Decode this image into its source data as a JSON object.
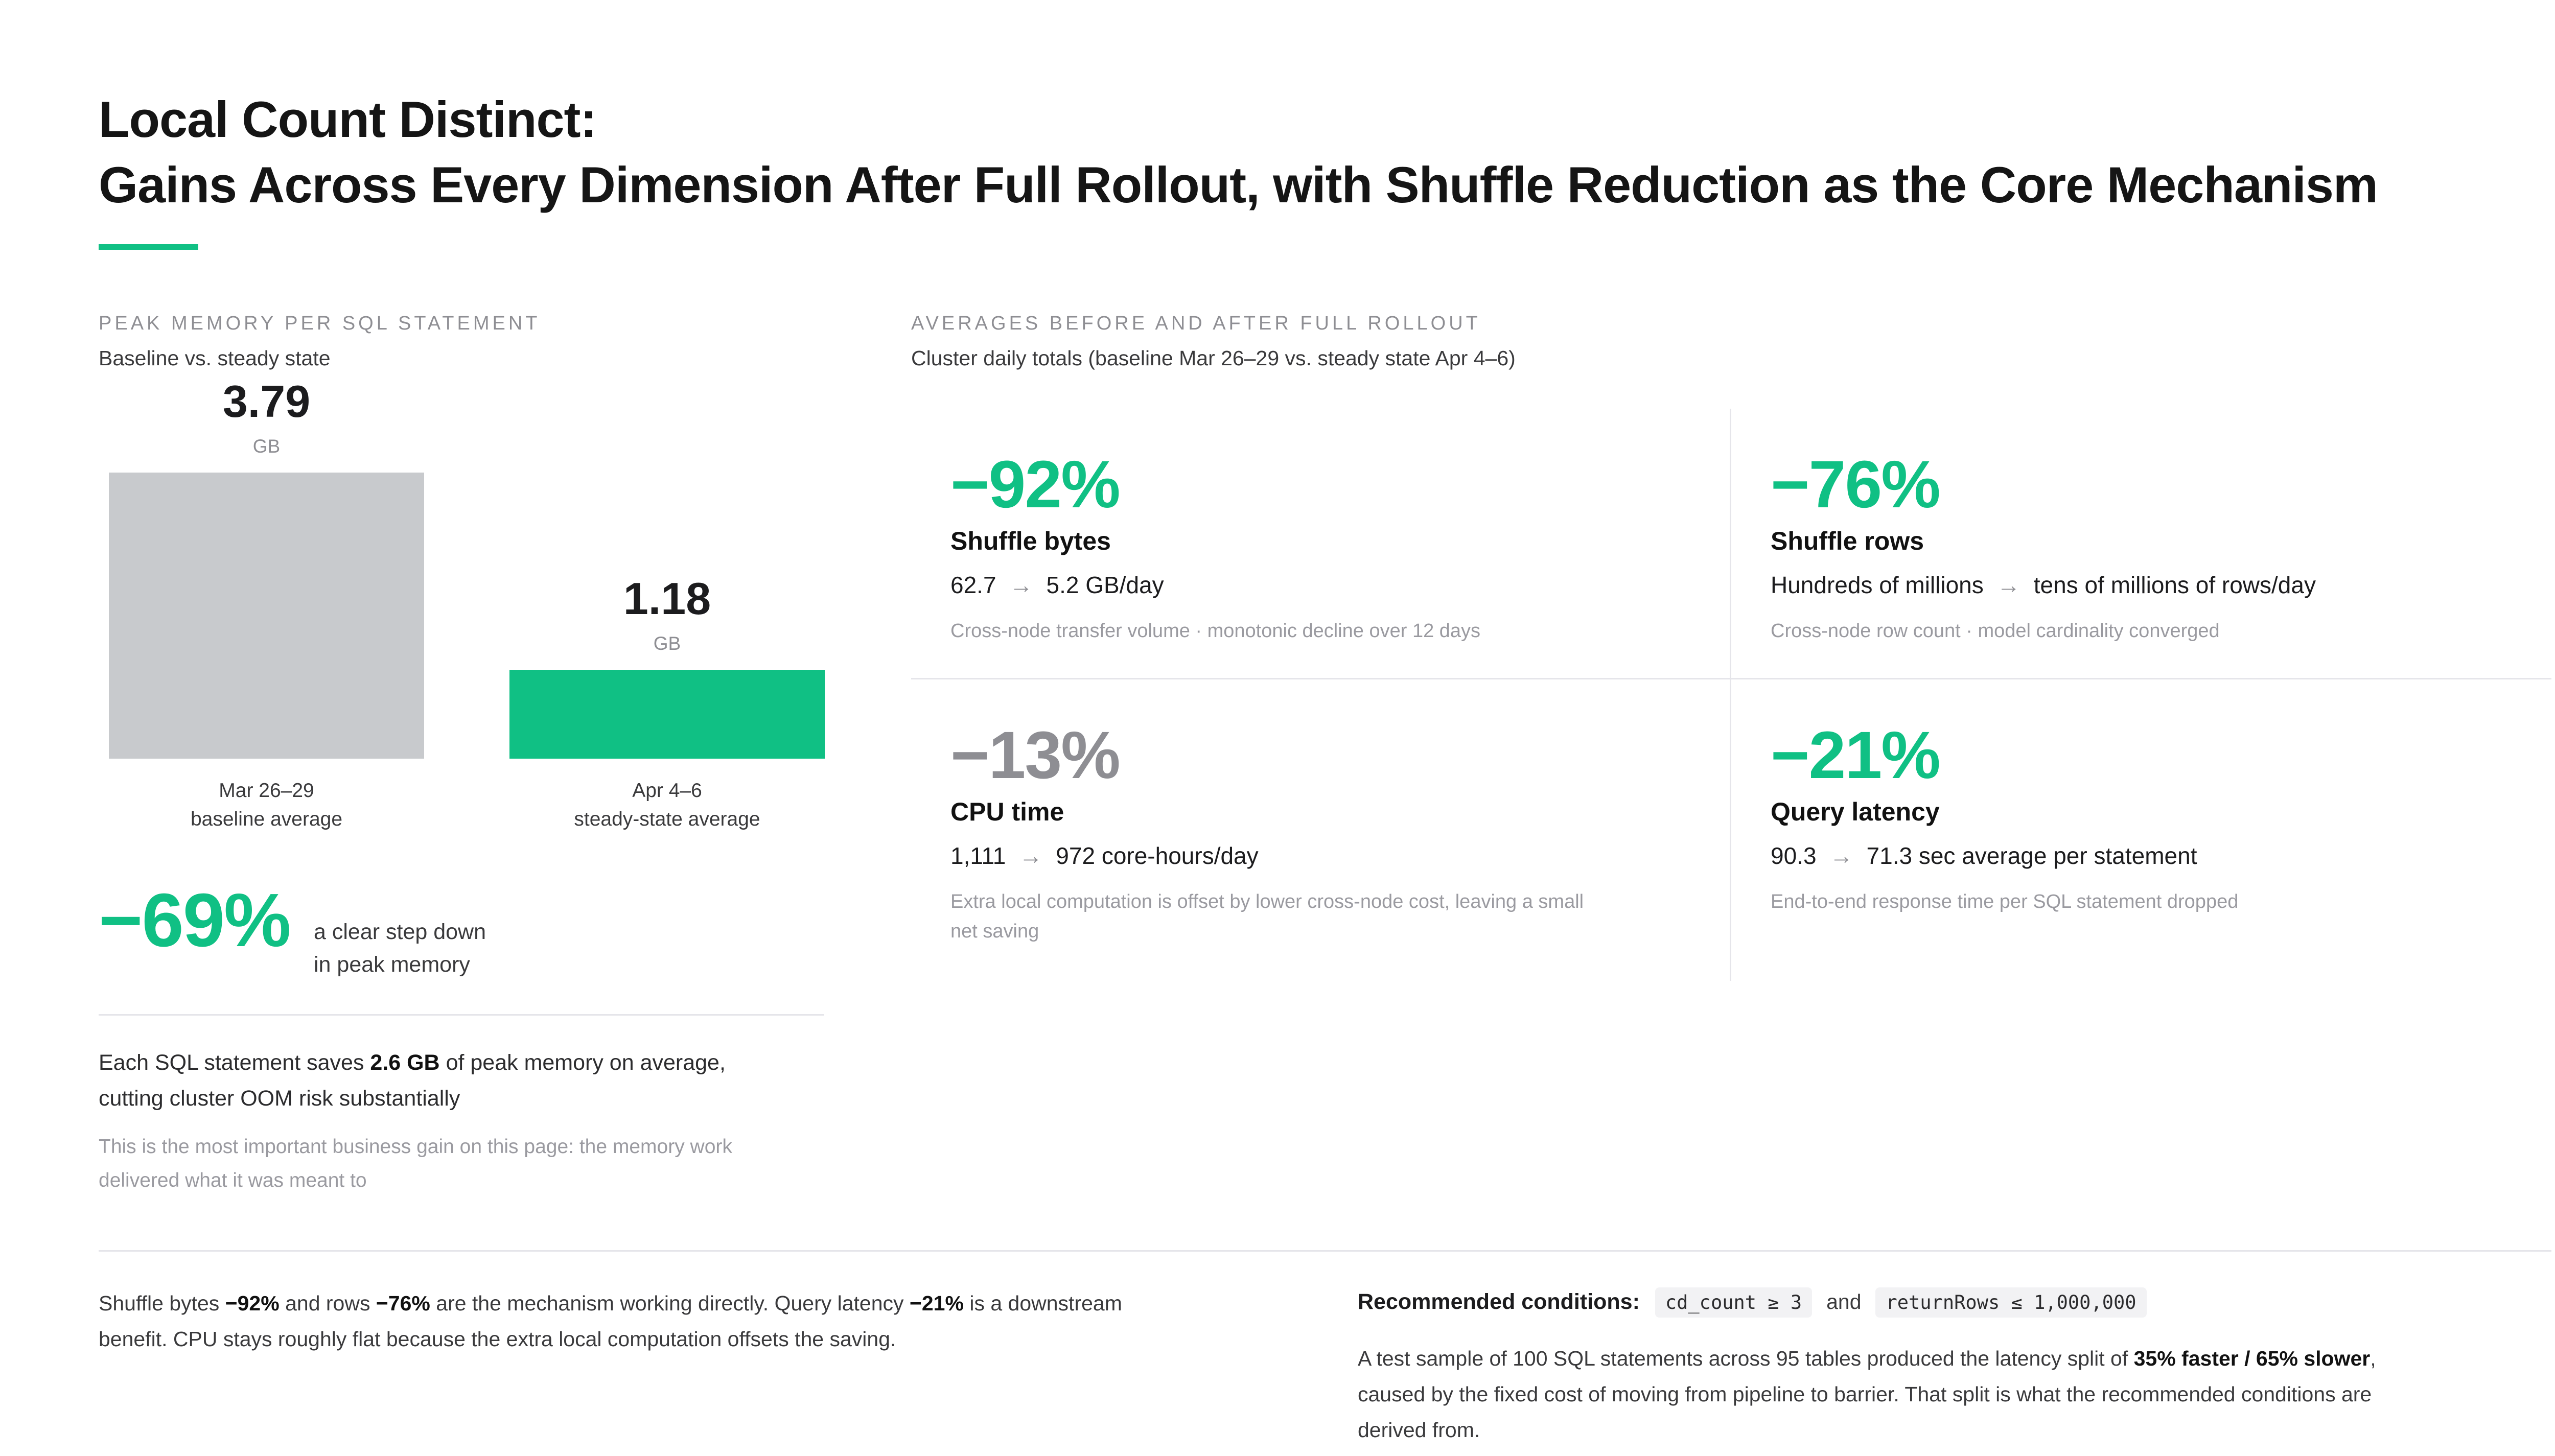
{
  "title": {
    "line1": "Local Count Distinct:",
    "line2": "Gains Across Every Dimension After Full Rollout, with Shuffle Reduction as the Core Mechanism"
  },
  "left": {
    "kicker": "PEAK MEMORY PER SQL STATEMENT",
    "subtitle": "Baseline vs. steady state",
    "delta": "−69%",
    "delta_line1": "a clear step down",
    "delta_line2": "in peak memory",
    "note_pre": "Each SQL statement saves ",
    "note_bold": "2.6 GB",
    "note_post": " of peak memory on average,",
    "note_line2": "cutting cluster OOM risk substantially",
    "soft_line1": "This is the most important business gain on this page: the memory work",
    "soft_line2": "delivered what it was meant to"
  },
  "chart_data": {
    "type": "bar",
    "categories": [
      "Mar 26–29 baseline average",
      "Apr 4–6 steady-state average"
    ],
    "values": [
      3.79,
      1.18
    ],
    "value_labels": [
      "3.79",
      "1.18"
    ],
    "unit": "GB",
    "cap_line1": [
      "Mar 26–29",
      "Apr 4–6"
    ],
    "cap_line2": [
      "baseline average",
      "steady-state average"
    ],
    "colors": [
      "#c8cacd",
      "#10c084"
    ],
    "ylim": [
      0,
      3.79
    ]
  },
  "right": {
    "kicker": "AVERAGES BEFORE AND AFTER FULL ROLLOUT",
    "subtitle": "Cluster daily totals (baseline Mar 26–29 vs. steady state Apr 4–6)",
    "metrics": [
      {
        "pct": "−92%",
        "label": "Shuffle bytes",
        "from": "62.7",
        "to": "5.2 GB/day",
        "note1": "Cross-node transfer volume · monotonic decline over 12 days",
        "note2": ""
      },
      {
        "pct": "−76%",
        "label": "Shuffle rows",
        "from": "Hundreds of millions",
        "to": "tens of millions of rows/day",
        "note1": "Cross-node row count · model cardinality converged",
        "note2": ""
      },
      {
        "pct": "−13%",
        "label": "CPU time",
        "from": "1,111",
        "to": "972 core-hours/day",
        "note1": "Extra local computation is offset by lower cross-node cost, leaving a small",
        "note2": "net saving"
      },
      {
        "pct": "−21%",
        "label": "Query latency",
        "from": "90.3",
        "to": "71.3 sec average per statement",
        "note1": "End-to-end response time per SQL statement dropped",
        "note2": ""
      }
    ],
    "arrow": "→"
  },
  "footer": {
    "left_1a": "Shuffle bytes ",
    "left_1b": "−92%",
    "left_1c": " and rows ",
    "left_1d": "−76%",
    "left_1e": " are the mechanism working directly. Query latency ",
    "left_1f": "−21%",
    "left_1g": " is a downstream",
    "left_2": "benefit. CPU stays roughly flat because the extra local computation offsets the saving.",
    "rec_label": "Recommended conditions:",
    "rec_code1": "cd_count ≥ 3",
    "rec_and": "and",
    "rec_code2": "returnRows ≤ 1,000,000",
    "p_1a": "A test sample of 100 SQL statements across 95 tables produced the latency split of ",
    "p_1b": "35% faster / 65% slower",
    "p_1c": ",",
    "p_2": "caused by the fixed cost of moving from pipeline to barrier. That split is what the recommended conditions are",
    "p_3": "derived from."
  },
  "colors": {
    "accent": "#10c084",
    "baseline_bar": "#c8cacd",
    "muted": "#8e8e93"
  }
}
